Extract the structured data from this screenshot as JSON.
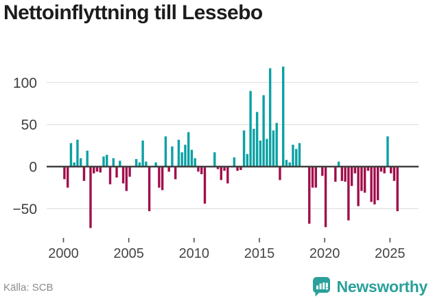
{
  "title": "Nettoinflyttning till Lessebo",
  "source": "Källa: SCB",
  "logo": {
    "text": "Newsworthy",
    "color": "#2ba09b"
  },
  "chart_data": {
    "type": "bar",
    "title": "Nettoinflyttning till Lessebo",
    "xlabel": "",
    "ylabel": "",
    "frequency": "quarterly",
    "x_start": "2000 Q1",
    "x_end": "2025 Q3",
    "values": [
      -15,
      -25,
      28,
      5,
      32,
      10,
      -17,
      19,
      -73,
      -8,
      -6,
      -7,
      12,
      14,
      -21,
      10,
      -13,
      7,
      -20,
      -29,
      -12,
      0,
      9,
      5,
      31,
      6,
      -53,
      0,
      5,
      -25,
      -28,
      36,
      -6,
      24,
      -15,
      32,
      17,
      26,
      41,
      20,
      10,
      -6,
      -9,
      -44,
      0,
      0,
      17,
      -3,
      -16,
      -5,
      -20,
      0,
      11,
      -5,
      -4,
      43,
      15,
      90,
      45,
      65,
      31,
      85,
      33,
      117,
      43,
      52,
      -16,
      119,
      8,
      5,
      26,
      21,
      28,
      0,
      0,
      -68,
      -25,
      -25,
      0,
      -11,
      -72,
      0,
      0,
      -18,
      6,
      -17,
      -18,
      -64,
      -23,
      -8,
      -47,
      -29,
      -31,
      -5,
      -42,
      -45,
      -40,
      -6,
      -8,
      36,
      -8,
      -17,
      -53
    ],
    "y_ticks": [
      100,
      50,
      0,
      -50
    ],
    "y_tick_labels": [
      "100",
      "50",
      "0",
      "−50"
    ],
    "x_tick_labels": [
      "2000",
      "2005",
      "2010",
      "2015",
      "2020",
      "2025"
    ],
    "ylim": [
      -85,
      135
    ],
    "grid": true,
    "legend": "none",
    "positive_color": "#0AA1A4",
    "negative_color": "#A00E4B",
    "axis_color": "#3f3f3f",
    "gridline_color": "#e2e2e2"
  }
}
